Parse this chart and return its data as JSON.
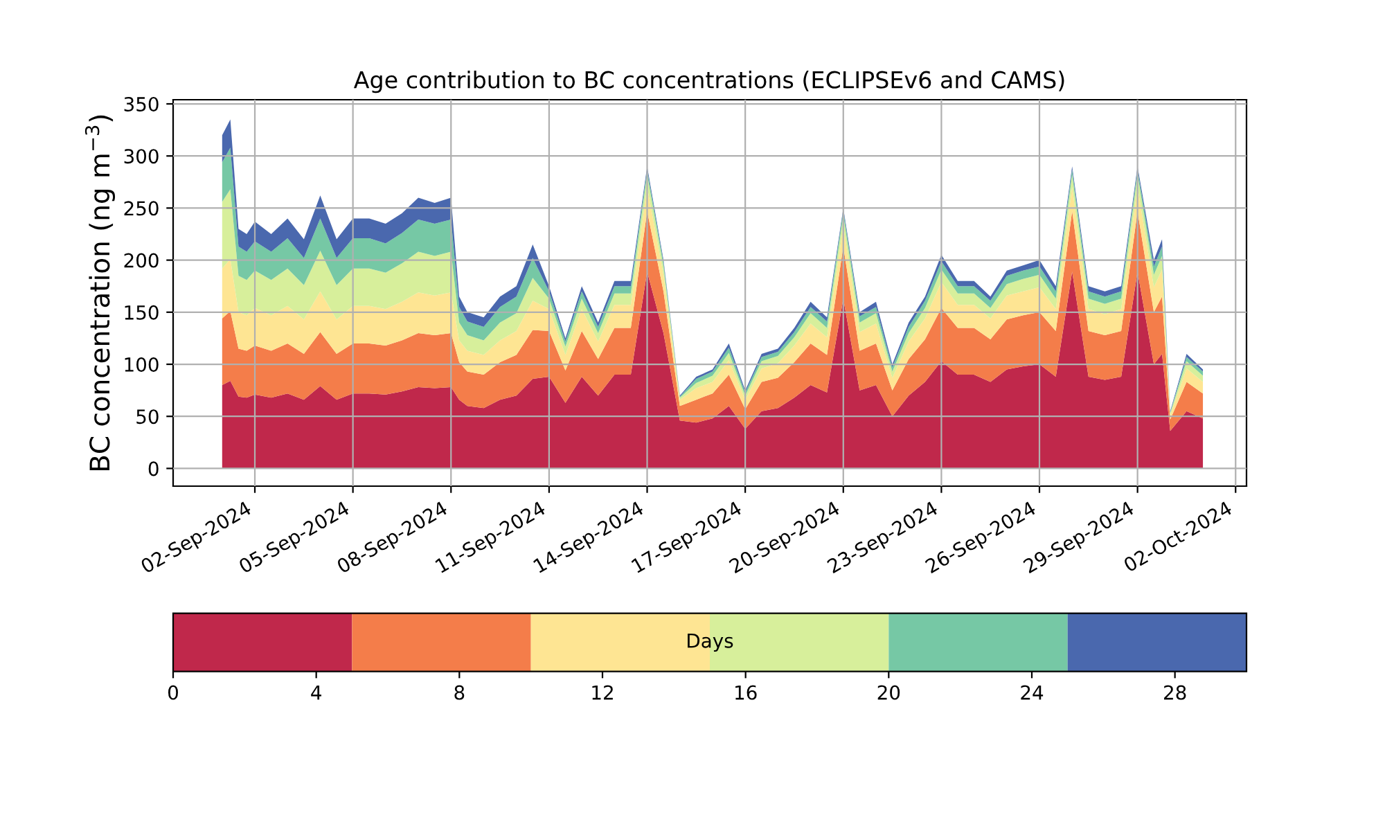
{
  "chart_data": {
    "type": "area",
    "stacked": true,
    "title": "Age contribution to BC concentrations (ECLIPSEv6 and CAMS)",
    "ylabel": "BC concentration (ng m$^{−3}$)",
    "clabel": "Days",
    "clim": [
      0,
      30
    ],
    "cticks": [
      0,
      4,
      8,
      12,
      16,
      20,
      24,
      28
    ],
    "grid": true,
    "legend": false,
    "x": [
      "2024-09-01T00:00",
      "2024-09-01T06:00",
      "2024-09-01T12:00",
      "2024-09-01T18:00",
      "2024-09-02T00:00",
      "2024-09-02T12:00",
      "2024-09-03T00:00",
      "2024-09-03T12:00",
      "2024-09-04T00:00",
      "2024-09-04T12:00",
      "2024-09-05T00:00",
      "2024-09-05T12:00",
      "2024-09-06T00:00",
      "2024-09-06T12:00",
      "2024-09-07T00:00",
      "2024-09-07T12:00",
      "2024-09-08T00:00",
      "2024-09-08T06:00",
      "2024-09-08T12:00",
      "2024-09-09T00:00",
      "2024-09-09T12:00",
      "2024-09-10T00:00",
      "2024-09-10T12:00",
      "2024-09-11T00:00",
      "2024-09-11T12:00",
      "2024-09-12T00:00",
      "2024-09-12T12:00",
      "2024-09-13T00:00",
      "2024-09-13T12:00",
      "2024-09-14T00:00",
      "2024-09-14T12:00",
      "2024-09-15T00:00",
      "2024-09-15T12:00",
      "2024-09-16T00:00",
      "2024-09-16T12:00",
      "2024-09-17T00:00",
      "2024-09-17T12:00",
      "2024-09-18T00:00",
      "2024-09-18T12:00",
      "2024-09-19T00:00",
      "2024-09-19T12:00",
      "2024-09-20T00:00",
      "2024-09-20T12:00",
      "2024-09-21T00:00",
      "2024-09-21T12:00",
      "2024-09-22T00:00",
      "2024-09-22T12:00",
      "2024-09-23T00:00",
      "2024-09-23T12:00",
      "2024-09-24T00:00",
      "2024-09-24T12:00",
      "2024-09-25T00:00",
      "2024-09-25T12:00",
      "2024-09-26T00:00",
      "2024-09-26T12:00",
      "2024-09-27T00:00",
      "2024-09-27T12:00",
      "2024-09-28T00:00",
      "2024-09-28T12:00",
      "2024-09-29T00:00",
      "2024-09-29T12:00",
      "2024-09-29T18:00",
      "2024-09-30T00:00",
      "2024-09-30T12:00",
      "2024-10-01T00:00"
    ],
    "series": [
      {
        "color": "#c0284b",
        "values": [
          80,
          84,
          69,
          68,
          71,
          68,
          72,
          66,
          79,
          66,
          72,
          72,
          71,
          74,
          78,
          77,
          78,
          66,
          60,
          58,
          66,
          70,
          86,
          88,
          63,
          88,
          70,
          90,
          90,
          189,
          130,
          46,
          44,
          48,
          60,
          38,
          55,
          58,
          68,
          80,
          73,
          163,
          75,
          80,
          50,
          70,
          83,
          103,
          90,
          90,
          83,
          95,
          98,
          100,
          88,
          189,
          88,
          85,
          88,
          189,
          100,
          110,
          36,
          55,
          48
        ]
      },
      {
        "color": "#f47d4a",
        "values": [
          64,
          67,
          46,
          45,
          47,
          45,
          48,
          44,
          52,
          44,
          48,
          48,
          47,
          49,
          52,
          51,
          52,
          36,
          33,
          32,
          36,
          39,
          47,
          44,
          31,
          44,
          35,
          45,
          45,
          58,
          40,
          14,
          22,
          24,
          30,
          19,
          28,
          29,
          34,
          40,
          36,
          50,
          38,
          40,
          25,
          35,
          41,
          51,
          45,
          45,
          41,
          48,
          49,
          50,
          44,
          58,
          44,
          43,
          44,
          58,
          50,
          55,
          11,
          28,
          24
        ]
      },
      {
        "color": "#fee593",
        "values": [
          48,
          50,
          35,
          34,
          36,
          34,
          36,
          33,
          39,
          33,
          36,
          36,
          35,
          37,
          39,
          38,
          39,
          21,
          20,
          19,
          21,
          23,
          28,
          21,
          15,
          21,
          17,
          22,
          22,
          23,
          16,
          6,
          11,
          11,
          14,
          9,
          13,
          14,
          16,
          19,
          17,
          20,
          18,
          19,
          12,
          17,
          20,
          25,
          22,
          22,
          20,
          23,
          23,
          24,
          21,
          23,
          21,
          20,
          21,
          23,
          24,
          26,
          4,
          13,
          11
        ]
      },
      {
        "color": "#d7ef9b",
        "values": [
          64,
          67,
          35,
          34,
          36,
          34,
          36,
          33,
          39,
          33,
          36,
          36,
          35,
          37,
          39,
          38,
          39,
          17,
          15,
          14,
          17,
          17,
          22,
          10,
          8,
          10,
          8,
          11,
          11,
          12,
          8,
          2,
          5,
          6,
          7,
          4,
          7,
          7,
          8,
          10,
          9,
          10,
          9,
          10,
          6,
          8,
          10,
          12,
          11,
          11,
          10,
          11,
          12,
          12,
          10,
          12,
          10,
          10,
          10,
          12,
          12,
          13,
          2,
          7,
          6
        ]
      },
      {
        "color": "#76c8a5",
        "values": [
          38,
          40,
          28,
          27,
          28,
          27,
          29,
          26,
          31,
          26,
          29,
          29,
          28,
          29,
          31,
          31,
          31,
          15,
          13,
          13,
          15,
          16,
          19,
          7,
          5,
          7,
          6,
          7,
          7,
          5,
          4,
          1,
          4,
          4,
          5,
          3,
          4,
          4,
          5,
          6,
          6,
          5,
          6,
          6,
          4,
          6,
          7,
          8,
          7,
          7,
          7,
          8,
          8,
          8,
          7,
          5,
          7,
          7,
          7,
          5,
          8,
          9,
          1,
          4,
          4
        ]
      },
      {
        "color": "#4a68ae",
        "values": [
          26,
          27,
          17,
          17,
          19,
          17,
          19,
          18,
          22,
          18,
          19,
          19,
          19,
          19,
          21,
          20,
          21,
          10,
          9,
          9,
          10,
          10,
          13,
          5,
          3,
          5,
          4,
          5,
          5,
          3,
          2,
          1,
          2,
          2,
          4,
          2,
          3,
          3,
          4,
          5,
          4,
          2,
          4,
          5,
          3,
          4,
          4,
          6,
          5,
          5,
          4,
          5,
          5,
          6,
          5,
          3,
          5,
          5,
          5,
          3,
          6,
          7,
          1,
          3,
          2
        ]
      }
    ],
    "xlim": [
      "2024-08-30T12:00",
      "2024-10-02T08:00"
    ],
    "xticks": [
      {
        "value": "2024-09-02",
        "label": "02-Sep-2024"
      },
      {
        "value": "2024-09-05",
        "label": "05-Sep-2024"
      },
      {
        "value": "2024-09-08",
        "label": "08-Sep-2024"
      },
      {
        "value": "2024-09-11",
        "label": "11-Sep-2024"
      },
      {
        "value": "2024-09-14",
        "label": "14-Sep-2024"
      },
      {
        "value": "2024-09-17",
        "label": "17-Sep-2024"
      },
      {
        "value": "2024-09-20",
        "label": "20-Sep-2024"
      },
      {
        "value": "2024-09-23",
        "label": "23-Sep-2024"
      },
      {
        "value": "2024-09-26",
        "label": "26-Sep-2024"
      },
      {
        "value": "2024-09-29",
        "label": "29-Sep-2024"
      },
      {
        "value": "2024-10-02",
        "label": "02-Oct-2024"
      }
    ],
    "ylim": [
      -17,
      354
    ],
    "yticks": [
      0,
      50,
      100,
      150,
      200,
      250,
      300,
      350
    ]
  }
}
